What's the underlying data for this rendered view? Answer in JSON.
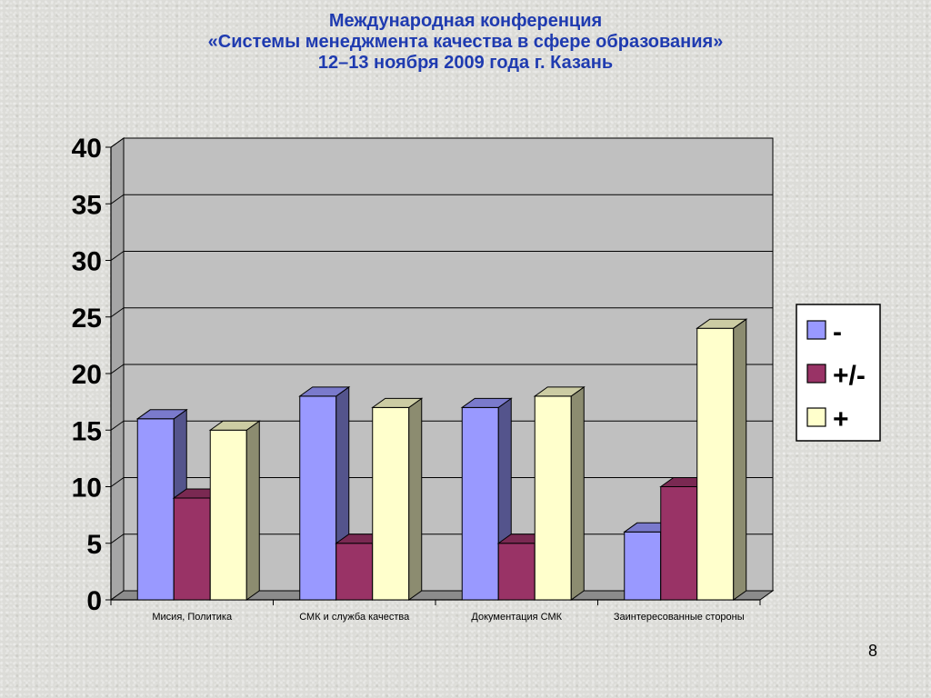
{
  "header": {
    "line1": "Международная конференция",
    "line2": "«Системы менеджмента качества в сфере образования»",
    "line3": "12–13 ноября 2009 года г. Казань"
  },
  "page_number": "8",
  "colors": {
    "series": [
      "#9999ff",
      "#993366",
      "#ffffcc"
    ],
    "wall": "#c0c0c0",
    "title_text": "#1f3bb0"
  },
  "chart_data": {
    "type": "bar",
    "categories": [
      "Мисия, Политика",
      "СМК и служба качества",
      "Документация СМК",
      "Заинтересованные стороны"
    ],
    "series": [
      {
        "name": "-",
        "values": [
          16,
          18,
          17,
          6
        ]
      },
      {
        "name": "+/-",
        "values": [
          9,
          5,
          5,
          10
        ]
      },
      {
        "name": "+",
        "values": [
          15,
          17,
          18,
          24
        ]
      }
    ],
    "ylim": [
      0,
      40
    ],
    "yticks": [
      "0",
      "5",
      "10",
      "15",
      "20",
      "25",
      "30",
      "35",
      "40"
    ],
    "grid": true,
    "legend": "right",
    "style": "3d-clustered"
  }
}
